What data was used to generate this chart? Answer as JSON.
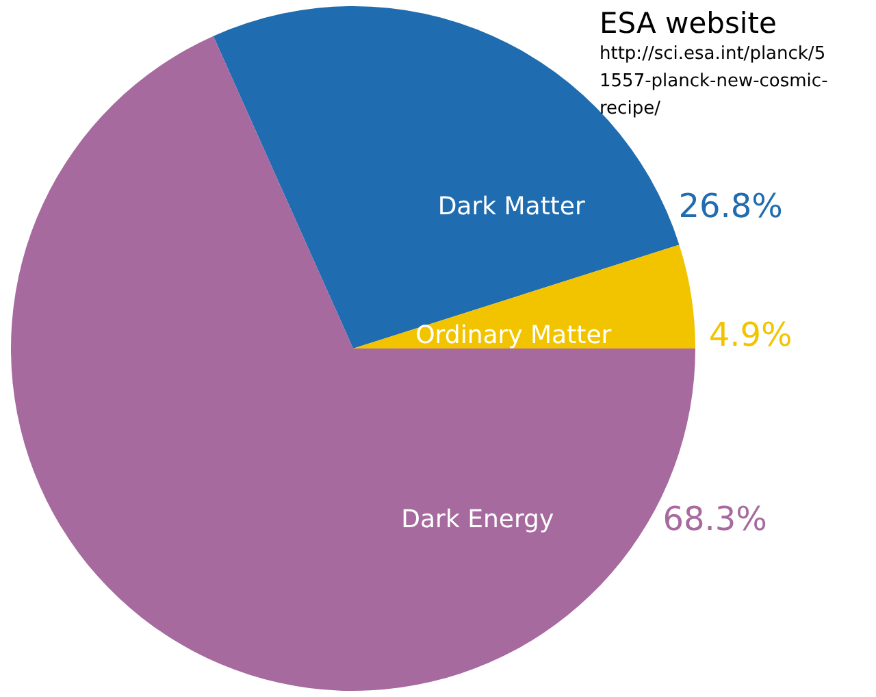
{
  "chart_data": {
    "type": "pie",
    "categories": [
      "Dark Matter",
      "Ordinary Matter",
      "Dark Energy"
    ],
    "values": [
      26.8,
      4.9,
      68.3
    ],
    "colors": [
      "#1f6cb0",
      "#f2c400",
      "#a66a9e"
    ],
    "value_labels": [
      "26.8%",
      "4.9%",
      "68.3%"
    ],
    "annotations": [
      "ESA website",
      "http://sci.esa.int/planck/51557-planck-new-cosmic-recipe/"
    ]
  }
}
